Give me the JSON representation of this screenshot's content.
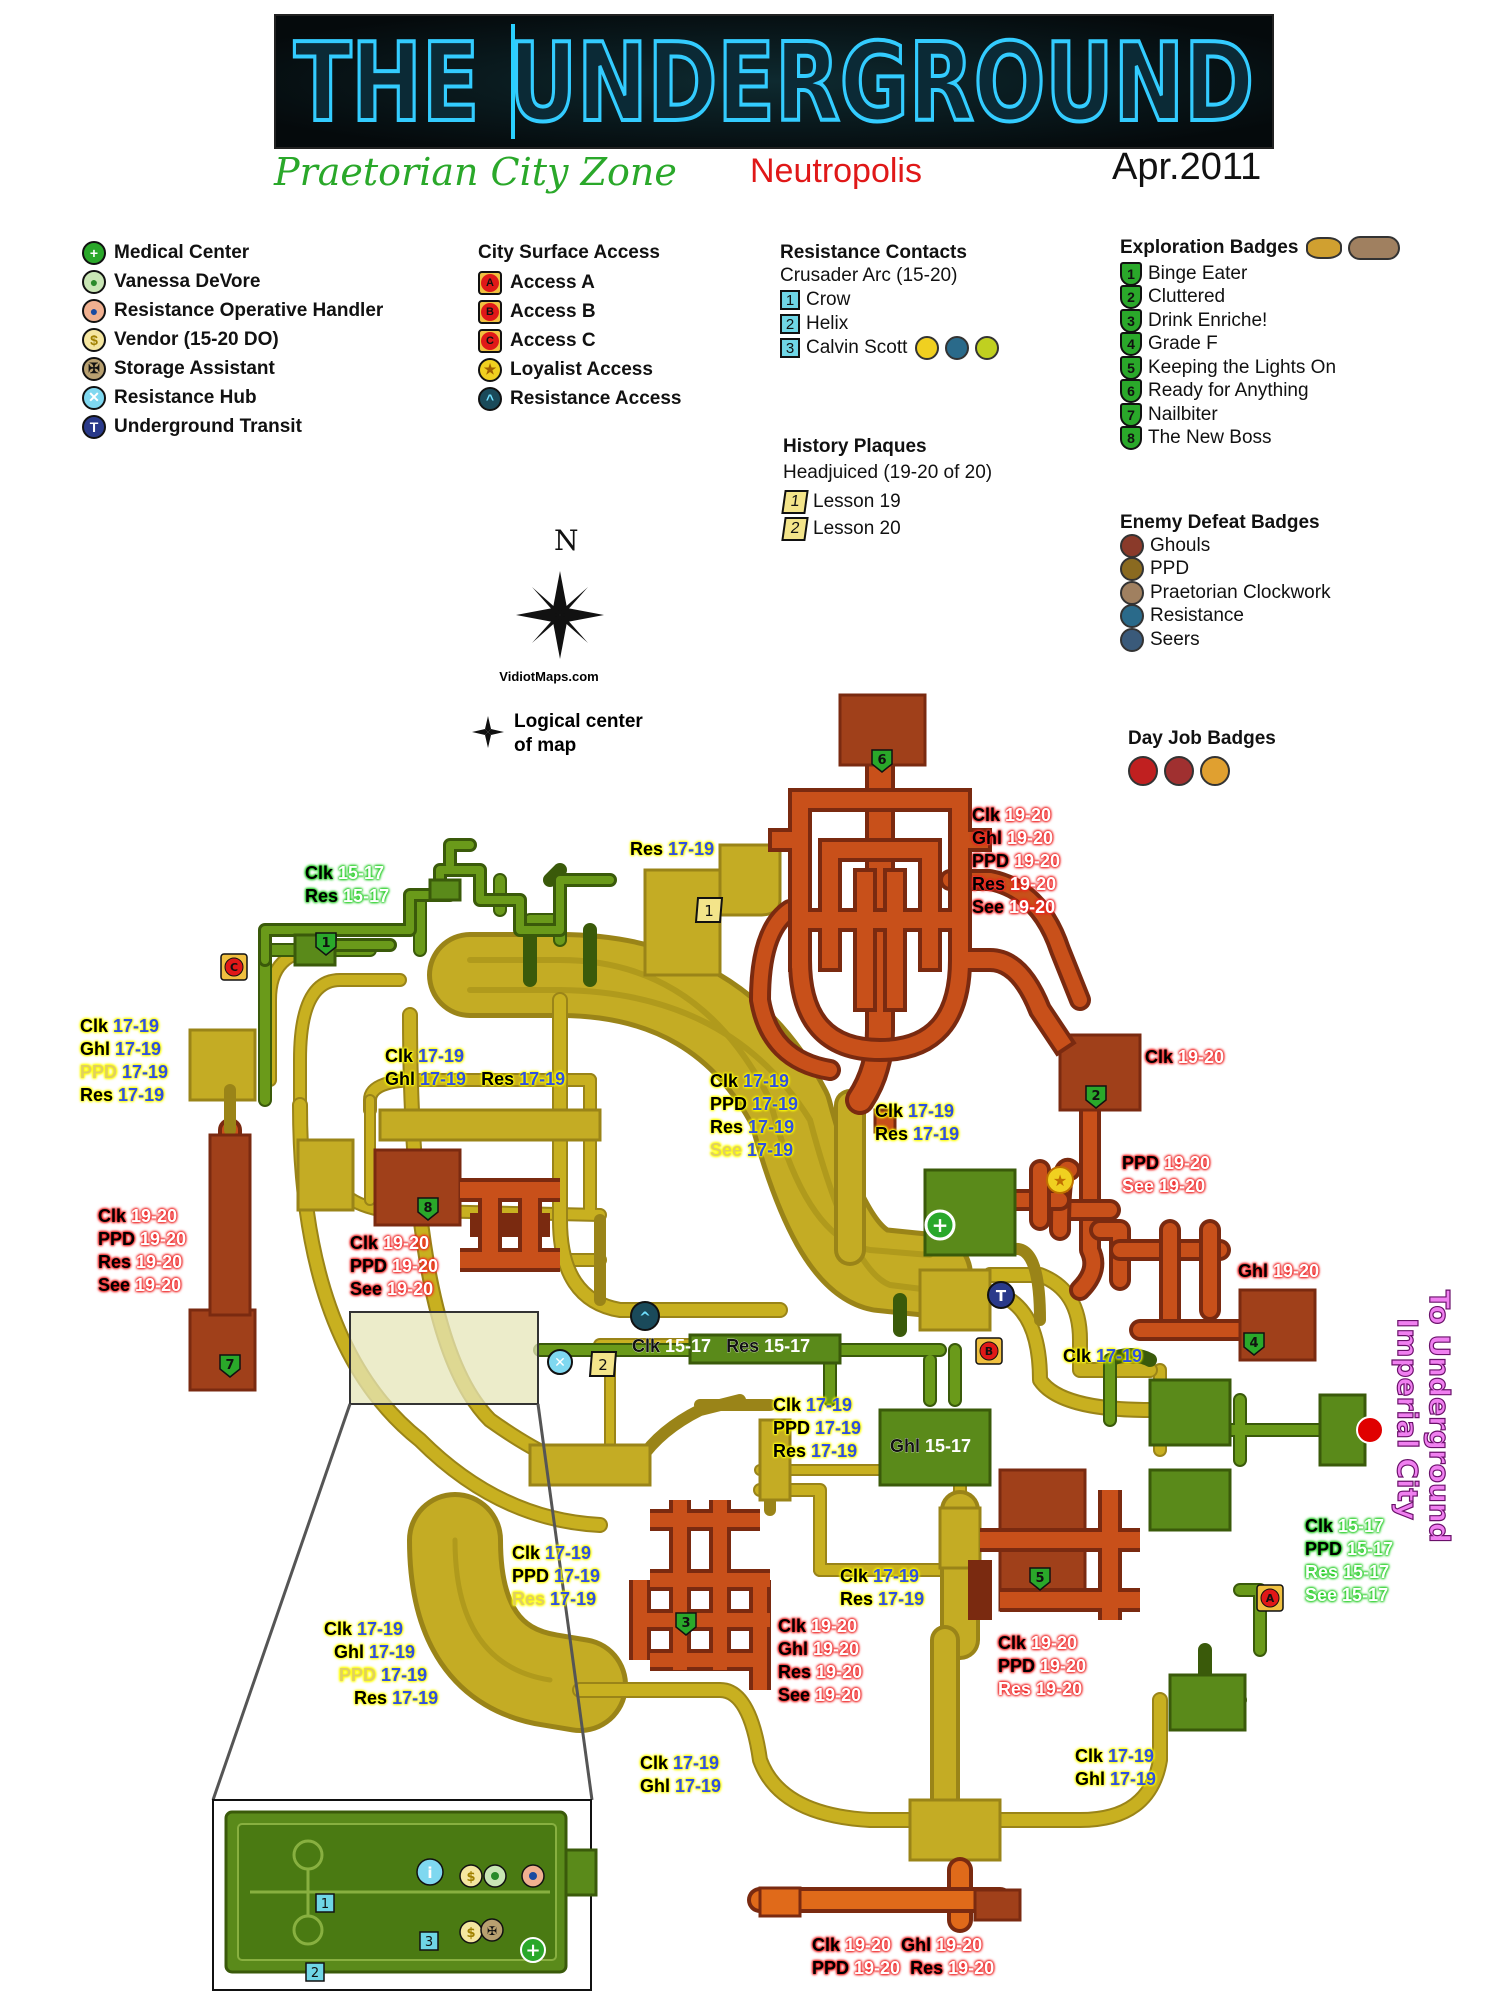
{
  "header": {
    "title": "THE UNDERGROUND",
    "zone": "Praetorian City Zone",
    "city": "Neutropolis",
    "date": "Apr.2011"
  },
  "legend_services": {
    "items": [
      {
        "label": "Medical Center",
        "icon": "medical-cross-icon",
        "color": "#2aa82a"
      },
      {
        "label": "Vanessa DeVore",
        "icon": "person-icon",
        "color": "#c9e6b5"
      },
      {
        "label": "Resistance Operative Handler",
        "icon": "person-icon",
        "color": "#f0b090"
      },
      {
        "label": "Vendor (15-20 DO)",
        "icon": "dollar-icon",
        "color": "#f5e6a0"
      },
      {
        "label": "Storage Assistant",
        "icon": "storage-icon",
        "color": "#b8a070"
      },
      {
        "label": "Resistance Hub",
        "icon": "hub-x-icon",
        "color": "#7fd8f0"
      },
      {
        "label": "Underground Transit",
        "icon": "transit-t-icon",
        "color": "#2a3a8a"
      }
    ]
  },
  "legend_access": {
    "title": "City Surface Access",
    "items": [
      {
        "label": "Access A",
        "letter": "A"
      },
      {
        "label": "Access B",
        "letter": "B"
      },
      {
        "label": "Access C",
        "letter": "C"
      },
      {
        "label": "Loyalist Access",
        "icon": "loyalist-star-icon"
      },
      {
        "label": "Resistance Access",
        "icon": "resistance-chevron-icon"
      }
    ]
  },
  "legend_contacts": {
    "title": "Resistance Contacts",
    "arc": "Crusader Arc (15-20)",
    "items": [
      {
        "num": "1",
        "label": "Crow"
      },
      {
        "num": "2",
        "label": "Helix"
      },
      {
        "num": "3",
        "label": "Calvin Scott"
      }
    ]
  },
  "legend_plaques": {
    "title": "History Plaques",
    "arc": "Headjuiced (19-20 of 20)",
    "items": [
      {
        "num": "1",
        "label": "Lesson 19"
      },
      {
        "num": "2",
        "label": "Lesson 20"
      }
    ]
  },
  "legend_exploration": {
    "title": "Exploration Badges",
    "items": [
      {
        "num": "1",
        "label": "Binge Eater"
      },
      {
        "num": "2",
        "label": "Cluttered"
      },
      {
        "num": "3",
        "label": "Drink Enriche!"
      },
      {
        "num": "4",
        "label": "Grade F"
      },
      {
        "num": "5",
        "label": "Keeping the Lights On"
      },
      {
        "num": "6",
        "label": "Ready for Anything"
      },
      {
        "num": "7",
        "label": "Nailbiter"
      },
      {
        "num": "8",
        "label": "The New Boss"
      }
    ]
  },
  "legend_enemy": {
    "title": "Enemy Defeat Badges",
    "items": [
      {
        "label": "Ghouls",
        "color": "#8a3a2a"
      },
      {
        "label": "PPD",
        "color": "#8a6a20"
      },
      {
        "label": "Praetorian Clockwork",
        "color": "#a08060"
      },
      {
        "label": "Resistance",
        "color": "#2a6a8a"
      },
      {
        "label": "Seers",
        "color": "#3a5a7a"
      }
    ]
  },
  "legend_dayjob": {
    "title": "Day Job Badges"
  },
  "compass": {
    "letter": "N",
    "credit": "VidiotMaps.com",
    "center_label_1": "Logical center",
    "center_label_2": "of map"
  },
  "exit_label": {
    "line1": "To Underground",
    "line2": "Imperial City"
  },
  "colors": {
    "yellow_zone": "#c8b020",
    "yellow_fill": "#bca62a",
    "orange_zone": "#c8501a",
    "red_zone": "#a0401a",
    "green_zone": "#5a8a1a",
    "exit_dot": "#e00000"
  }
}
